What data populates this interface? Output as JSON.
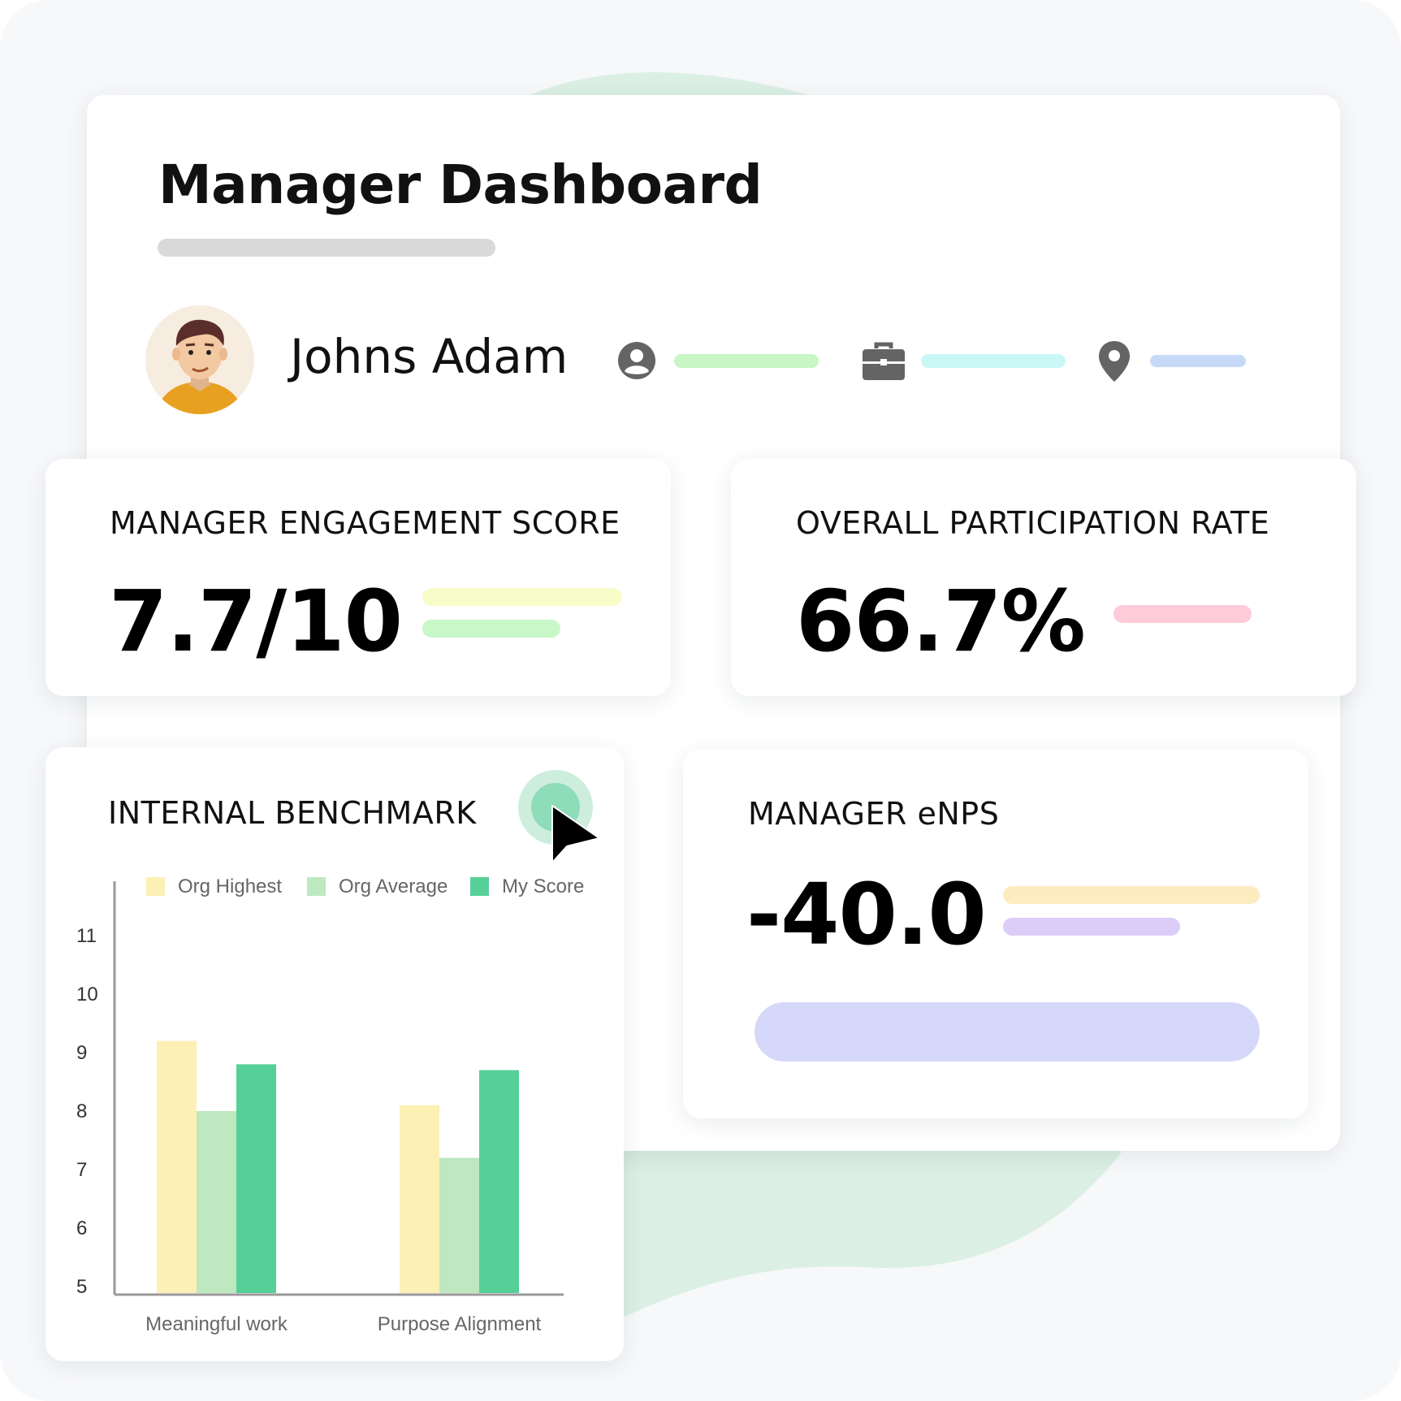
{
  "header": {
    "title": "Manager Dashboard"
  },
  "profile": {
    "name": "Johns Adam",
    "icons": [
      "user-circle-icon",
      "briefcase-icon",
      "location-pin-icon"
    ]
  },
  "kpis": {
    "engagement": {
      "label": "MANAGER ENGAGEMENT SCORE",
      "value": "7.7/10"
    },
    "participation": {
      "label": "OVERALL PARTICIPATION RATE",
      "value": "66.7%"
    },
    "enps": {
      "label": "MANAGER eNPS",
      "value": "-40.0"
    }
  },
  "benchmark": {
    "title": "INTERNAL BENCHMARK"
  },
  "colors": {
    "org_highest": "#fdf0b5",
    "org_average": "#bde8c0",
    "my_score": "#56cf98",
    "accent_green": "#56cf98"
  },
  "chart_data": {
    "type": "bar",
    "title": "INTERNAL BENCHMARK",
    "categories": [
      "Meaningful work",
      "Purpose Alignment"
    ],
    "series": [
      {
        "name": "Org Highest",
        "values": [
          9.2,
          8.1
        ]
      },
      {
        "name": "Org Average",
        "values": [
          8.0,
          7.2
        ]
      },
      {
        "name": "My Score",
        "values": [
          8.8,
          8.7
        ]
      }
    ],
    "ylim": [
      5,
      11
    ],
    "yticks": [
      "5",
      "6",
      "7",
      "8",
      "9",
      "10",
      "11"
    ],
    "legend": "top",
    "grid": false,
    "xlabel": "",
    "ylabel": ""
  }
}
